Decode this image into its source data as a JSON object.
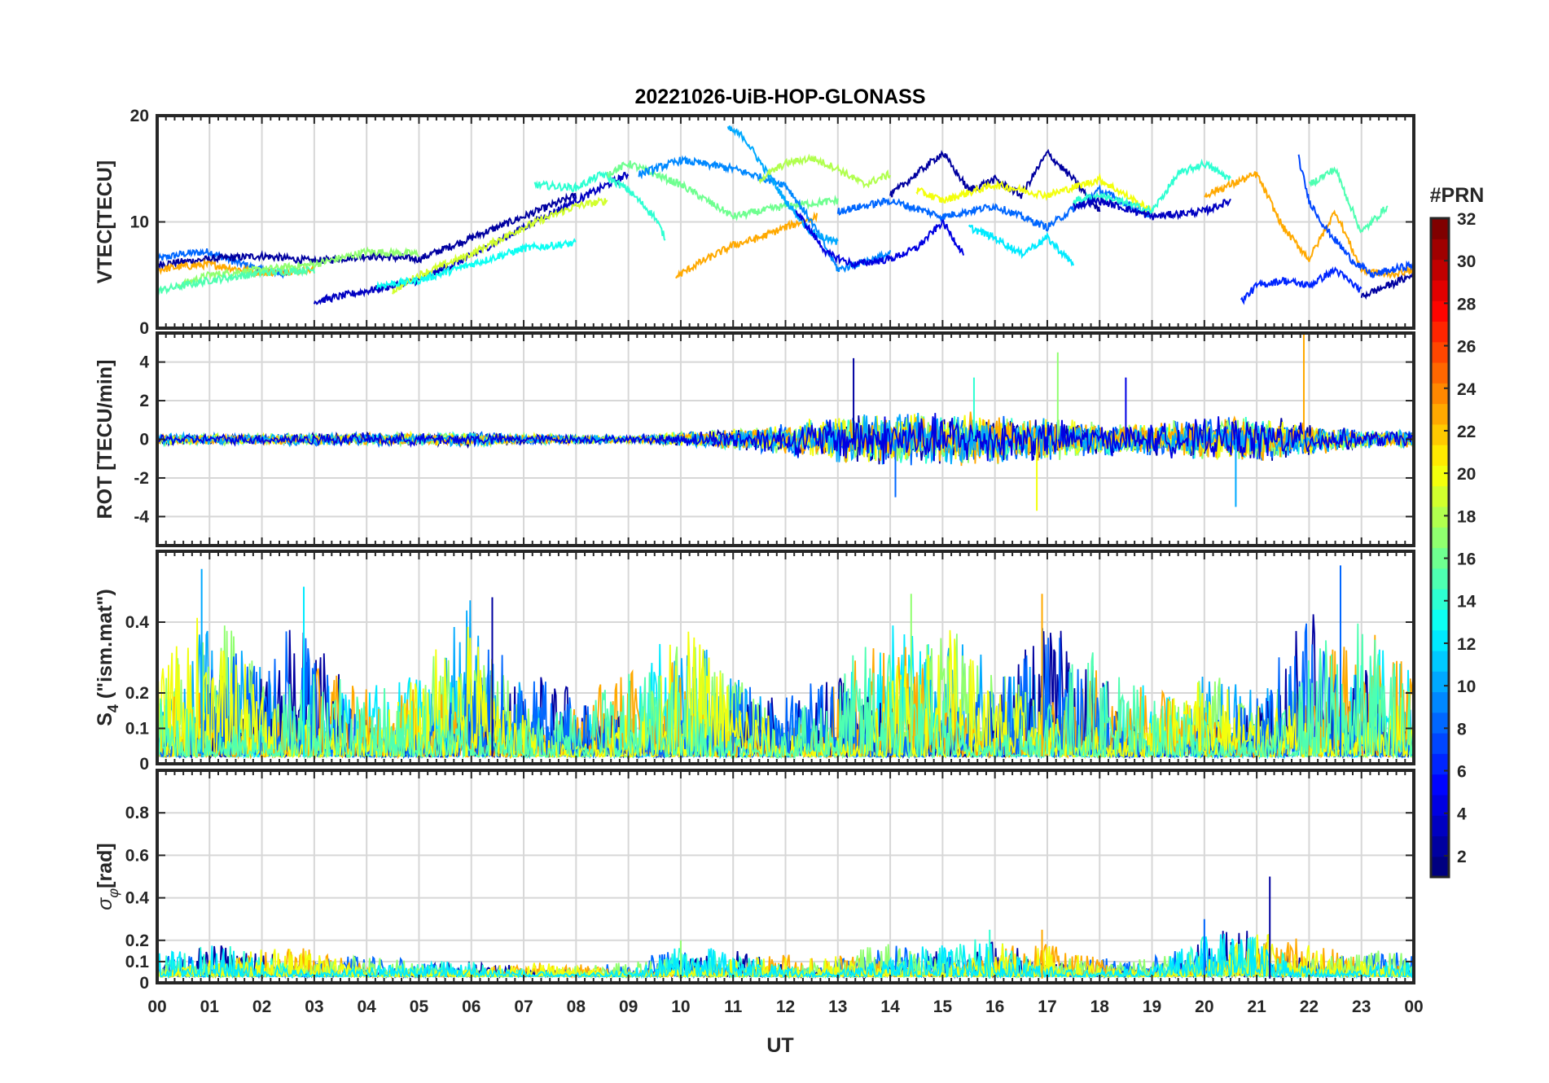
{
  "chart_data": {
    "type": "line",
    "title": "20221026-UiB-HOP-GLONASS",
    "xlabel": "UT",
    "x_tick_labels": [
      "00",
      "01",
      "02",
      "03",
      "04",
      "05",
      "06",
      "07",
      "08",
      "09",
      "10",
      "11",
      "12",
      "13",
      "14",
      "15",
      "16",
      "17",
      "18",
      "19",
      "20",
      "21",
      "22",
      "23",
      "00"
    ],
    "xlim_hours": [
      0,
      24
    ],
    "grid": true,
    "colorbar": {
      "label": "#PRN",
      "colormap": "jet",
      "range": [
        1,
        32
      ],
      "tick_labels": [
        "2",
        "4",
        "6",
        "8",
        "10",
        "12",
        "14",
        "16",
        "18",
        "20",
        "22",
        "24",
        "26",
        "28",
        "30",
        "32"
      ]
    },
    "panels": [
      {
        "name": "vtec",
        "ylabel": "VTEC[TECU]",
        "ylim": [
          0,
          20
        ],
        "y_ticks": [
          0,
          10,
          20
        ],
        "y_tick_labels": [
          "0",
          "10",
          "20"
        ],
        "series": [
          {
            "prn": 8,
            "t": [
              0.0,
              0.5,
              1.0,
              1.5,
              2.0,
              2.5
            ],
            "v": [
              6.5,
              7.0,
              7.2,
              6.2,
              5.5,
              5.0
            ]
          },
          {
            "prn": 2,
            "t": [
              0.0,
              1.0,
              2.0,
              3.0,
              4.0,
              5.0,
              6.0,
              7.0,
              8.0
            ],
            "v": [
              6.0,
              6.5,
              6.8,
              6.3,
              6.8,
              6.5,
              8.5,
              10.5,
              12.5
            ]
          },
          {
            "prn": 23,
            "t": [
              0.0,
              0.5,
              1.0,
              2.0,
              3.0
            ],
            "v": [
              5.5,
              5.8,
              6.0,
              5.2,
              5.5
            ]
          },
          {
            "prn": 17,
            "t": [
              0.4,
              1.0,
              2.0,
              3.0,
              4.0,
              5.0
            ],
            "v": [
              4.0,
              5.0,
              5.5,
              6.0,
              7.2,
              7.0
            ]
          },
          {
            "prn": 15,
            "t": [
              0.0,
              1.0,
              2.0,
              3.0
            ],
            "v": [
              3.5,
              4.5,
              5.2,
              5.5
            ]
          },
          {
            "prn": 3,
            "t": [
              3.0,
              4.0,
              5.0,
              6.0,
              7.0,
              8.0,
              9.0
            ],
            "v": [
              2.5,
              3.5,
              4.5,
              6.8,
              9.5,
              12.0,
              14.5
            ]
          },
          {
            "prn": 19,
            "t": [
              4.5,
              5.0,
              6.0,
              7.0,
              8.0,
              8.6
            ],
            "v": [
              3.5,
              5.0,
              7.0,
              9.5,
              11.5,
              12.0
            ]
          },
          {
            "prn": 13,
            "t": [
              4.2,
              5.0,
              6.0,
              7.0,
              8.0
            ],
            "v": [
              4.0,
              4.5,
              6.0,
              7.5,
              8.0
            ]
          },
          {
            "prn": 14,
            "t": [
              7.2,
              8.0,
              8.5,
              9.0,
              9.5,
              9.7
            ],
            "v": [
              13.5,
              13.2,
              14.5,
              13.0,
              10.5,
              8.5
            ]
          },
          {
            "prn": 16,
            "t": [
              8.6,
              9.0,
              10.0,
              11.0,
              12.0,
              13.0
            ],
            "v": [
              14.5,
              15.5,
              13.5,
              10.5,
              11.5,
              12.0
            ]
          },
          {
            "prn": 23,
            "t": [
              9.9,
              10.3,
              11.0,
              11.5,
              12.0,
              12.6
            ],
            "v": [
              4.8,
              6.0,
              7.8,
              8.5,
              9.5,
              10.5
            ]
          },
          {
            "prn": 9,
            "t": [
              9.2,
              10.0,
              11.0,
              12.0,
              12.5,
              13.0,
              14.0
            ],
            "v": [
              14.5,
              15.8,
              15.0,
              13.5,
              10.0,
              5.5,
              7.0
            ]
          },
          {
            "prn": 10,
            "t": [
              10.9,
              11.2,
              11.6,
              12.0,
              12.5,
              13.0
            ],
            "v": [
              18.8,
              18.0,
              15.0,
              12.0,
              9.0,
              8.0
            ]
          },
          {
            "prn": 18,
            "t": [
              11.5,
              12.0,
              12.5,
              13.0,
              13.5,
              14.0
            ],
            "v": [
              14.0,
              15.5,
              16.0,
              15.0,
              13.5,
              14.5
            ]
          },
          {
            "prn": 4,
            "t": [
              12.2,
              12.8,
              13.3,
              14.0,
              14.5,
              15.0,
              15.4
            ],
            "v": [
              11.0,
              7.0,
              6.0,
              6.5,
              7.5,
              10.0,
              7.0
            ]
          },
          {
            "prn": 2,
            "t": [
              14.0,
              14.5,
              15.0,
              15.5,
              16.0,
              16.5,
              17.0,
              17.5,
              18.0
            ],
            "v": [
              12.5,
              14.5,
              16.5,
              13.0,
              14.0,
              12.5,
              16.5,
              14.0,
              11.0
            ]
          },
          {
            "prn": 8,
            "t": [
              13.0,
              14.0,
              15.0,
              16.0,
              17.0,
              18.0,
              19.0
            ],
            "v": [
              11.0,
              12.0,
              10.5,
              11.5,
              9.5,
              13.0,
              10.5
            ]
          },
          {
            "prn": 12,
            "t": [
              15.5,
              16.0,
              16.5,
              17.0,
              17.5
            ],
            "v": [
              9.5,
              8.5,
              7.0,
              8.5,
              6.0
            ]
          },
          {
            "prn": 20,
            "t": [
              14.5,
              15.0,
              16.0,
              17.0,
              18.0,
              19.0
            ],
            "v": [
              13.0,
              12.0,
              13.5,
              12.5,
              14.0,
              11.0
            ]
          },
          {
            "prn": 14,
            "t": [
              17.5,
              18.0,
              19.0,
              19.5,
              20.0,
              20.5
            ],
            "v": [
              12.0,
              12.5,
              11.0,
              14.5,
              15.5,
              14.0
            ]
          },
          {
            "prn": 3,
            "t": [
              17.5,
              18.0,
              19.0,
              20.0,
              20.5
            ],
            "v": [
              11.5,
              12.0,
              10.5,
              11.0,
              12.0
            ]
          },
          {
            "prn": 23,
            "t": [
              20.0,
              20.5,
              21.0,
              21.5,
              22.0,
              22.5,
              23.0,
              23.5,
              24.0
            ],
            "v": [
              12.5,
              13.5,
              14.5,
              9.5,
              6.5,
              11.0,
              5.5,
              5.0,
              5.5
            ]
          },
          {
            "prn": 15,
            "t": [
              22.0,
              22.5,
              23.0,
              23.5
            ],
            "v": [
              13.5,
              15.0,
              9.0,
              11.5
            ]
          },
          {
            "prn": 6,
            "t": [
              20.7,
              21.0,
              21.5,
              22.0,
              22.5,
              23.0
            ],
            "v": [
              2.5,
              4.0,
              4.5,
              4.0,
              5.5,
              3.5
            ]
          },
          {
            "prn": 7,
            "t": [
              21.8,
              22.0,
              22.3,
              22.8,
              23.2,
              24.0
            ],
            "v": [
              16.0,
              12.0,
              9.5,
              6.5,
              5.0,
              6.0
            ]
          },
          {
            "prn": 2,
            "t": [
              23.0,
              23.5,
              24.0
            ],
            "v": [
              3.0,
              4.0,
              5.0
            ]
          }
        ]
      },
      {
        "name": "rot",
        "ylabel": "ROT [TECU/min]",
        "ylim": [
          -5.5,
          5.5
        ],
        "y_ticks": [
          -4,
          -2,
          0,
          2,
          4
        ],
        "y_tick_labels": [
          "-4",
          "-2",
          "0",
          "2",
          "4"
        ],
        "envelope": {
          "t": [
            0,
            1,
            2,
            3,
            4,
            5,
            6,
            7,
            8,
            9,
            10,
            11,
            12,
            13,
            14,
            15,
            16,
            17,
            18,
            19,
            20,
            21,
            22,
            23,
            24
          ],
          "amp": [
            0.3,
            0.3,
            0.3,
            0.35,
            0.35,
            0.35,
            0.4,
            0.3,
            0.25,
            0.2,
            0.4,
            0.6,
            0.9,
            1.3,
            1.5,
            1.5,
            1.4,
            1.2,
            0.9,
            0.9,
            1.2,
            1.3,
            0.9,
            0.5,
            0.5
          ],
          "spikes": [
            {
              "t": 13.3,
              "v": 4.2
            },
            {
              "t": 14.1,
              "v": -3.0
            },
            {
              "t": 15.6,
              "v": 3.2
            },
            {
              "t": 17.2,
              "v": 4.5
            },
            {
              "t": 16.8,
              "v": -3.7
            },
            {
              "t": 21.9,
              "v": 5.5
            },
            {
              "t": 20.6,
              "v": -3.5
            },
            {
              "t": 18.5,
              "v": 3.2
            }
          ]
        },
        "series_prns": [
          2,
          8,
          14,
          17,
          20,
          23,
          10,
          4
        ]
      },
      {
        "name": "s4",
        "ylabel": "S4 (\"ism.mat\")",
        "ylabel_main": "S",
        "ylabel_sub": "4",
        "ylabel_rest": " (\"ism.mat\")",
        "ylim": [
          0,
          0.6
        ],
        "y_ticks": [
          0,
          0.1,
          0.2,
          0.4
        ],
        "y_tick_labels": [
          "0",
          "0.1",
          "0.2",
          "0.4"
        ],
        "envelope": {
          "t": [
            0,
            1,
            2,
            3,
            4,
            5,
            6,
            7,
            8,
            9,
            10,
            11,
            12,
            13,
            14,
            15,
            16,
            17,
            18,
            19,
            20,
            21,
            22,
            23,
            24
          ],
          "amp": [
            0.2,
            0.35,
            0.25,
            0.3,
            0.15,
            0.2,
            0.35,
            0.2,
            0.15,
            0.2,
            0.3,
            0.2,
            0.15,
            0.2,
            0.3,
            0.3,
            0.2,
            0.3,
            0.25,
            0.15,
            0.2,
            0.15,
            0.35,
            0.3,
            0.2
          ],
          "spikes": [
            {
              "t": 0.85,
              "v": 0.55
            },
            {
              "t": 2.8,
              "v": 0.5
            },
            {
              "t": 6.4,
              "v": 0.47
            },
            {
              "t": 14.4,
              "v": 0.48
            },
            {
              "t": 16.9,
              "v": 0.48
            },
            {
              "t": 22.6,
              "v": 0.56
            }
          ]
        },
        "series_prns": [
          10,
          12,
          2,
          17,
          23,
          8,
          20,
          15
        ]
      },
      {
        "name": "sigma_phi",
        "ylabel": "σφ[rad]",
        "ylabel_main": "σ",
        "ylabel_sub": "φ",
        "ylabel_rest": "[rad]",
        "ylim": [
          0,
          1.0
        ],
        "y_ticks": [
          0,
          0.1,
          0.2,
          0.4,
          0.6,
          0.8
        ],
        "y_tick_labels": [
          "0",
          "0.1",
          "0.2",
          "0.4",
          "0.6",
          "0.8"
        ],
        "envelope": {
          "t": [
            0,
            1,
            2,
            3,
            4,
            5,
            6,
            7,
            8,
            9,
            10,
            11,
            12,
            13,
            14,
            15,
            16,
            17,
            18,
            19,
            20,
            21,
            22,
            23,
            24
          ],
          "amp": [
            0.1,
            0.12,
            0.12,
            0.1,
            0.08,
            0.06,
            0.06,
            0.05,
            0.05,
            0.05,
            0.12,
            0.1,
            0.08,
            0.1,
            0.12,
            0.12,
            0.15,
            0.12,
            0.08,
            0.07,
            0.15,
            0.2,
            0.12,
            0.1,
            0.1
          ],
          "spikes": [
            {
              "t": 21.25,
              "v": 0.5
            },
            {
              "t": 20.0,
              "v": 0.3
            },
            {
              "t": 16.9,
              "v": 0.25
            },
            {
              "t": 15.9,
              "v": 0.25
            },
            {
              "t": 10.0,
              "v": 0.2
            }
          ]
        },
        "series_prns": [
          2,
          8,
          23,
          14,
          17,
          20,
          12
        ]
      }
    ]
  }
}
